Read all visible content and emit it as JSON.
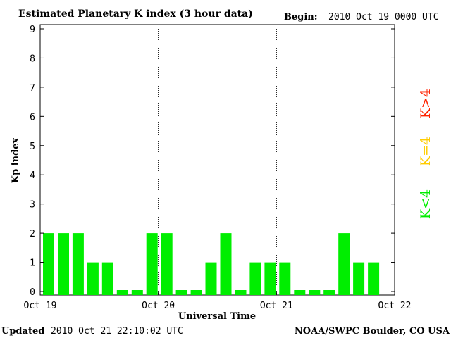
{
  "header": {
    "title": "Estimated Planetary K index (3 hour data)",
    "begin_label": "Begin:",
    "begin_value": "2010 Oct 19 0000 UTC"
  },
  "footer": {
    "updated_label": "Updated",
    "updated_value": "2010 Oct 21 22:10:02 UTC",
    "source": "NOAA/SWPC Boulder, CO USA"
  },
  "legend": [
    {
      "label": "K>4",
      "color": "#ff2200"
    },
    {
      "label": "K=4",
      "color": "#ffcc00"
    },
    {
      "label": "K<4",
      "color": "#00ee00"
    }
  ],
  "chart_data": {
    "type": "bar",
    "title": "Estimated Planetary K index (3 hour data)",
    "xlabel": "Universal Time",
    "ylabel": "Kp index",
    "ylim": [
      0,
      9
    ],
    "yticks": [
      0,
      1,
      2,
      3,
      4,
      5,
      6,
      7,
      8,
      9
    ],
    "xtick_labels": [
      "Oct 19",
      "Oct 20",
      "Oct 21",
      "Oct 22"
    ],
    "bar_color": "#00ee00",
    "values": [
      2,
      2,
      2,
      1,
      1,
      0,
      0,
      2,
      2,
      0,
      0,
      1,
      2,
      0,
      1,
      1,
      1,
      0,
      0,
      0,
      2,
      1,
      1
    ],
    "grid": "dotted vertical lines at day boundaries"
  }
}
